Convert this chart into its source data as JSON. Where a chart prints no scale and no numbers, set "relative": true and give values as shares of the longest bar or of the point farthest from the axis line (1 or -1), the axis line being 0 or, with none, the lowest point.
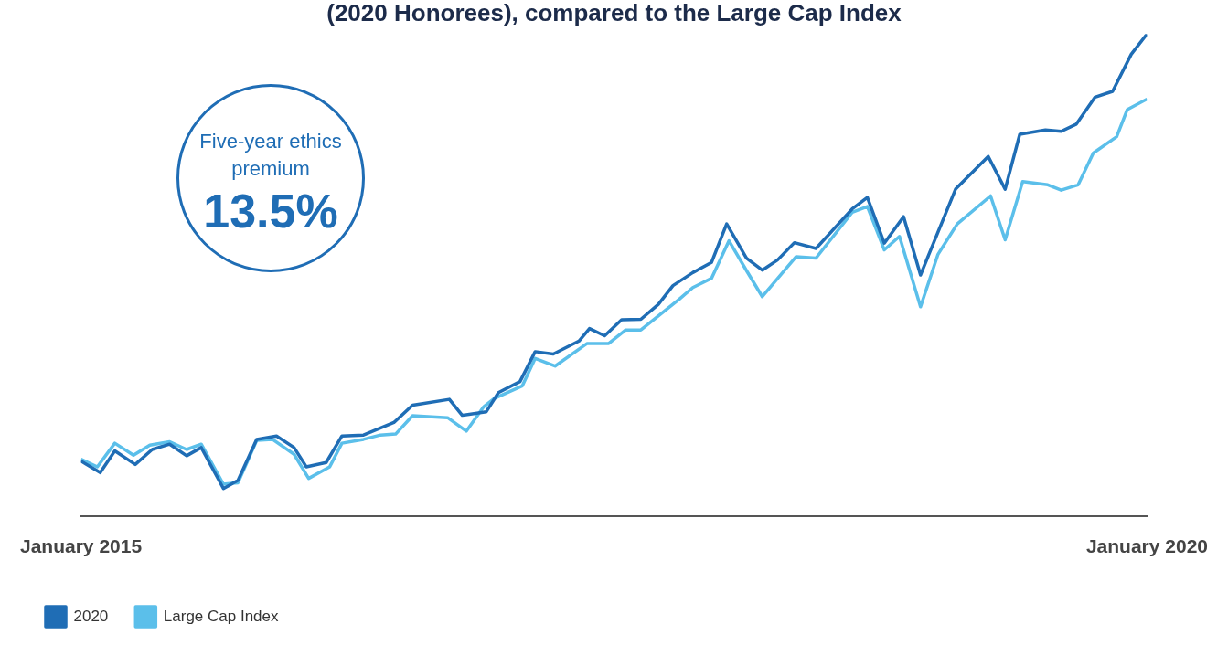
{
  "chart_data": {
    "type": "line",
    "title": "(2020 Honorees), compared to the Large Cap Index",
    "relative": true,
    "xlim": [
      "2015-01",
      "2020-01"
    ],
    "xticks": [
      {
        "value": "2015-01",
        "label": "January 2015"
      },
      {
        "value": "2020-01",
        "label": "January 2020"
      }
    ],
    "tick_labels": "x",
    "grid": false,
    "legend": "bottom left",
    "marker": "none",
    "line_style": "solid",
    "annotations": [
      "Five-year ethics premium",
      "13.5%"
    ],
    "series": [
      {
        "name": "2020",
        "color": "#1f6db5",
        "x": [
          "2015-01-01",
          "2015-02-03",
          "2015-02-28",
          "2015-04-04",
          "2015-05-03",
          "2015-06-02",
          "2015-07-01",
          "2015-07-26",
          "2015-09-02",
          "2015-09-27",
          "2015-10-29",
          "2015-12-02",
          "2016-01-01",
          "2016-01-22",
          "2016-02-25",
          "2016-03-23",
          "2016-04-29",
          "2016-06-20",
          "2016-07-22",
          "2016-09-23",
          "2016-10-15",
          "2016-11-25",
          "2016-12-16",
          "2017-01-22",
          "2017-02-17",
          "2017-03-20",
          "2017-05-03",
          "2017-05-21",
          "2017-06-16",
          "2017-07-15",
          "2017-08-17",
          "2017-09-16",
          "2017-10-11",
          "2017-11-14",
          "2017-12-16",
          "2018-01-11",
          "2018-02-14",
          "2018-03-13",
          "2018-04-08",
          "2018-05-07",
          "2018-06-13",
          "2018-08-14",
          "2018-09-09",
          "2018-10-08",
          "2018-11-10",
          "2018-12-09",
          "2019-02-07",
          "2019-04-04",
          "2019-05-03",
          "2019-05-28",
          "2019-07-11",
          "2019-08-07",
          "2019-09-02",
          "2019-10-04",
          "2019-11-03",
          "2019-12-05",
          "2020-01-01"
        ],
        "values": [
          0.114,
          0.09,
          0.135,
          0.107,
          0.138,
          0.149,
          0.125,
          0.142,
          0.057,
          0.074,
          0.159,
          0.166,
          0.142,
          0.102,
          0.111,
          0.166,
          0.168,
          0.194,
          0.23,
          0.242,
          0.209,
          0.216,
          0.256,
          0.279,
          0.341,
          0.336,
          0.363,
          0.389,
          0.374,
          0.407,
          0.408,
          0.439,
          0.478,
          0.505,
          0.526,
          0.606,
          0.535,
          0.51,
          0.531,
          0.567,
          0.555,
          0.637,
          0.661,
          0.566,
          0.621,
          0.5,
          0.678,
          0.746,
          0.678,
          0.792,
          0.801,
          0.798,
          0.813,
          0.869,
          0.881,
          0.958,
          1
        ]
      },
      {
        "name": "Large Cap Index",
        "color": "#5bbfea",
        "x": [
          "2015-01-01",
          "2015-01-29",
          "2015-02-28",
          "2015-04-01",
          "2015-04-29",
          "2015-06-02",
          "2015-07-01",
          "2015-07-26",
          "2015-09-02",
          "2015-09-27",
          "2015-10-29",
          "2015-11-25",
          "2016-01-01",
          "2016-01-26",
          "2016-03-02",
          "2016-03-23",
          "2016-04-29",
          "2016-05-28",
          "2016-06-23",
          "2016-07-22",
          "2016-09-20",
          "2016-10-22",
          "2016-11-21",
          "2016-12-09",
          "2017-01-26",
          "2017-02-17",
          "2017-03-23",
          "2017-05-17",
          "2017-06-23",
          "2017-07-22",
          "2017-08-17",
          "2017-10-22",
          "2017-11-14",
          "2017-12-16",
          "2018-01-15",
          "2018-02-14",
          "2018-03-13",
          "2018-05-10",
          "2018-06-13",
          "2018-08-14",
          "2018-09-09",
          "2018-10-08",
          "2018-11-03",
          "2018-12-09",
          "2019-01-08",
          "2019-02-10",
          "2019-04-08",
          "2019-05-03",
          "2019-06-02",
          "2019-07-15",
          "2019-08-07",
          "2019-09-05",
          "2019-10-01",
          "2019-11-10",
          "2019-11-28",
          "2020-01-01"
        ],
        "values": [
          0.118,
          0.102,
          0.151,
          0.126,
          0.147,
          0.154,
          0.138,
          0.149,
          0.066,
          0.069,
          0.157,
          0.159,
          0.128,
          0.078,
          0.102,
          0.151,
          0.159,
          0.168,
          0.17,
          0.208,
          0.204,
          0.176,
          0.227,
          0.244,
          0.27,
          0.327,
          0.311,
          0.358,
          0.358,
          0.386,
          0.386,
          0.45,
          0.474,
          0.493,
          0.571,
          0.509,
          0.455,
          0.538,
          0.535,
          0.63,
          0.642,
          0.552,
          0.58,
          0.434,
          0.543,
          0.606,
          0.664,
          0.573,
          0.694,
          0.687,
          0.676,
          0.687,
          0.753,
          0.787,
          0.843,
          0.865
        ]
      }
    ]
  }
}
